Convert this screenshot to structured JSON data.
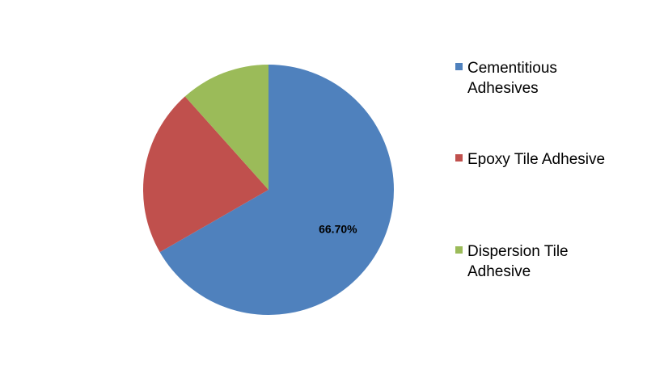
{
  "chart_data": {
    "type": "pie",
    "categories": [
      "Cementitious Adhesives",
      "Epoxy Tile Adhesive",
      "Dispersion Tile Adhesive"
    ],
    "values": [
      66.7,
      21.7,
      11.6
    ],
    "value_labels": [
      "66.70%",
      null,
      null
    ],
    "colors": [
      "#4f81bd",
      "#c0504d",
      "#9bbb59"
    ],
    "legend": "right"
  }
}
